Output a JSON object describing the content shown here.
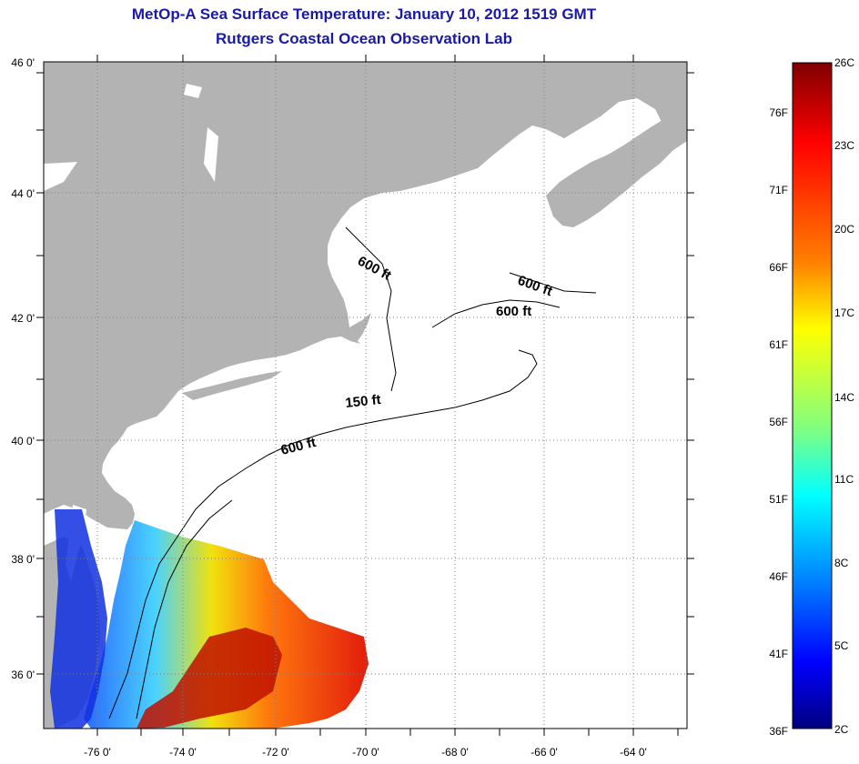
{
  "header": {
    "title": "MetOp-A Sea Surface Temperature:  January 10, 2012 1519 GMT",
    "subtitle": "Rutgers Coastal Ocean Observation Lab"
  },
  "map": {
    "lat_labels": [
      "46 0'",
      "44 0'",
      "42 0'",
      "40 0'",
      "38 0'",
      "36 0'"
    ],
    "lon_labels": [
      "-76 0'",
      "-74 0'",
      "-72 0'",
      "-70 0'",
      "-68 0'",
      "-66 0'",
      "-64 0'"
    ],
    "contour_labels": [
      "600 ft",
      "600 ft",
      "600 ft",
      "150 ft",
      "600 ft"
    ],
    "colors": {
      "land": "#b3b3b3",
      "ocean": "#ffffff",
      "contour": "#000000"
    }
  },
  "colorbar": {
    "fahrenheit_labels": [
      "76F",
      "71F",
      "66F",
      "61F",
      "56F",
      "51F",
      "46F",
      "41F",
      "36F"
    ],
    "celsius_labels": [
      "26C",
      "23C",
      "20C",
      "17C",
      "14C",
      "11C",
      "8C",
      "5C",
      "2C"
    ],
    "gradient": [
      "#7f0000",
      "#ff0000",
      "#ff8000",
      "#ffff00",
      "#80ff80",
      "#00ffff",
      "#0080ff",
      "#0000ff",
      "#00007f"
    ]
  }
}
